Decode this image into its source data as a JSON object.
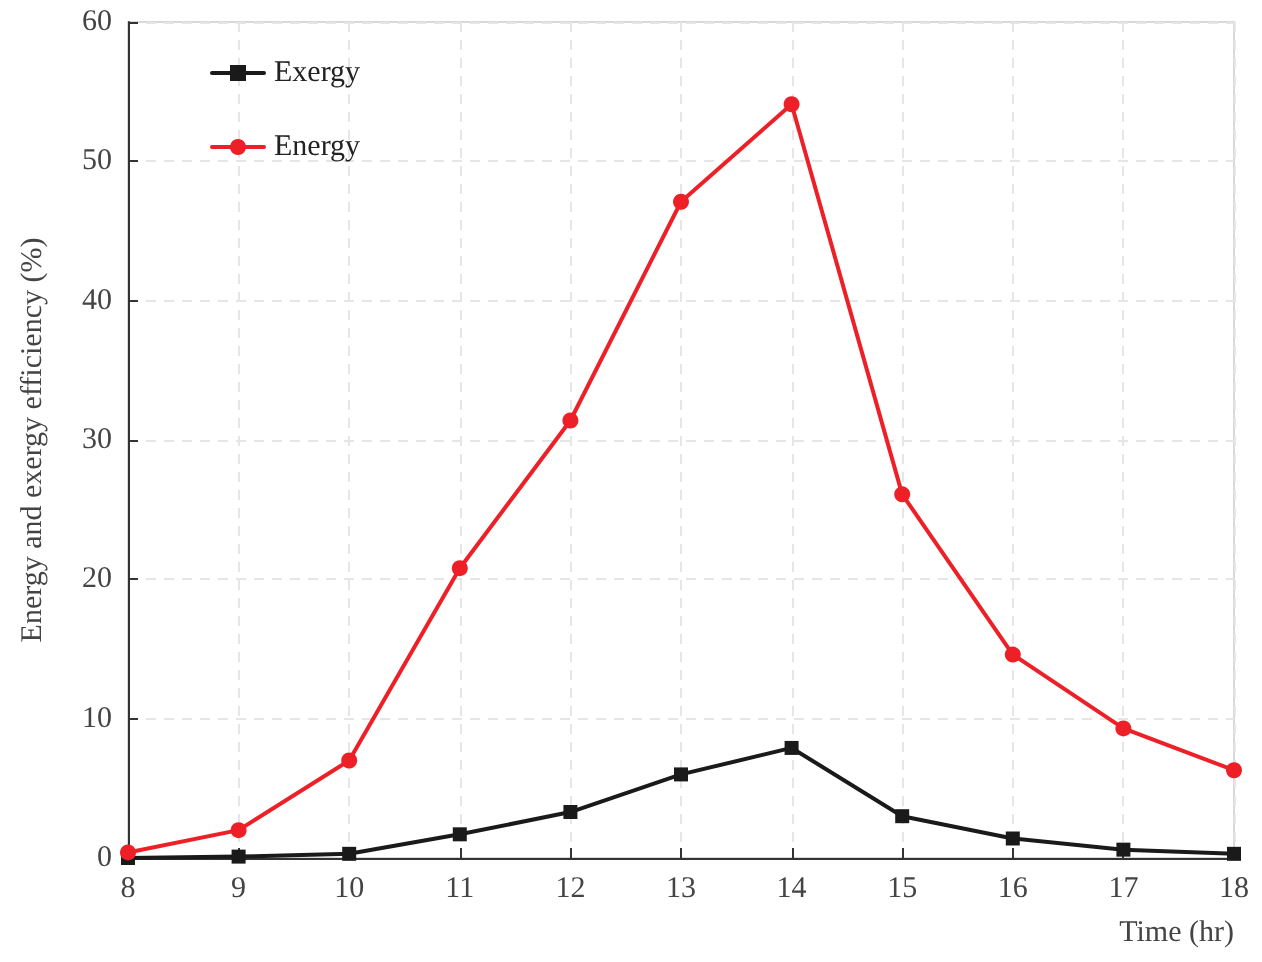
{
  "chart_data": {
    "type": "line",
    "xlabel": "Time (hr)",
    "ylabel": "Energy and exergy efficiency (%)",
    "x": [
      8,
      9,
      10,
      11,
      12,
      13,
      14,
      15,
      16,
      17,
      18
    ],
    "series": [
      {
        "name": "Exergy",
        "color": "#1a1a1a",
        "marker": "square",
        "values": [
          0,
          0.1,
          0.3,
          1.7,
          3.3,
          6.0,
          7.9,
          3.0,
          1.4,
          0.6,
          0.3
        ]
      },
      {
        "name": "Energy",
        "color": "#ee2027",
        "marker": "circle",
        "values": [
          0.4,
          2.0,
          7.0,
          20.8,
          31.4,
          47.1,
          54.1,
          26.1,
          14.6,
          9.3,
          6.3
        ]
      }
    ],
    "xlim": [
      8,
      18
    ],
    "xticks": [
      8,
      9,
      10,
      11,
      12,
      13,
      14,
      15,
      16,
      17,
      18
    ],
    "ylim": [
      0,
      60
    ],
    "yticks": [
      0,
      10,
      20,
      30,
      40,
      50,
      60
    ],
    "grid": true,
    "legend": "top left",
    "line_style": "solid"
  }
}
